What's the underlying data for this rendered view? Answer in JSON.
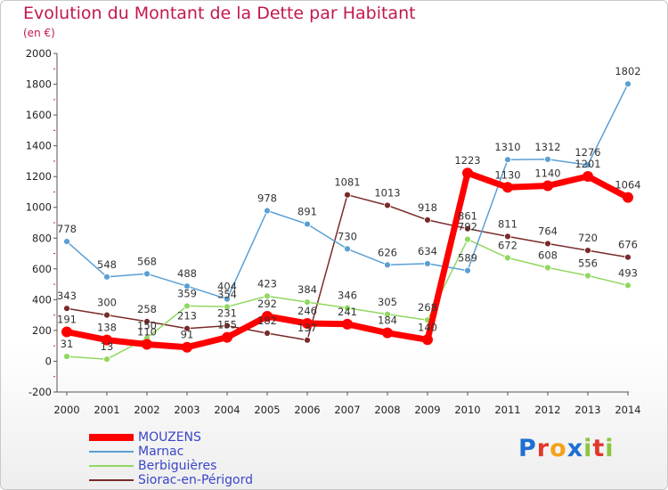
{
  "title": "Evolution du Montant de la Dette par Habitant",
  "subtitle": "(en €)",
  "logo": {
    "p1": "P",
    "p2": "r",
    "p3": "o",
    "p4": "x",
    "p5": "i",
    "p6": "t",
    "p7": "i"
  },
  "chart_data": {
    "type": "line",
    "title": "Evolution du Montant de la Dette par Habitant",
    "ylabel": "(en €)",
    "xlabel": "",
    "ylim": [
      -200,
      2000
    ],
    "yticks": [
      -200,
      0,
      200,
      400,
      600,
      800,
      1000,
      1200,
      1400,
      1600,
      1800,
      2000
    ],
    "x": [
      "2000",
      "2001",
      "2002",
      "2003",
      "2004",
      "2005",
      "2006",
      "2007",
      "2008",
      "2009",
      "2010",
      "2011",
      "2012",
      "2013",
      "2014"
    ],
    "grid": false,
    "legend_position": "bottom-left",
    "series": [
      {
        "name": "MOUZENS",
        "color": "#ff0000",
        "values": [
          191,
          138,
          110,
          91,
          155,
          292,
          246,
          241,
          184,
          140,
          1223,
          1130,
          1140,
          1201,
          1064
        ]
      },
      {
        "name": "Marnac",
        "color": "#5a9fd4",
        "values": [
          778,
          548,
          568,
          488,
          404,
          978,
          891,
          730,
          626,
          634,
          589,
          1310,
          1312,
          1276,
          1802
        ]
      },
      {
        "name": "Berbiguières",
        "color": "#90d860",
        "values": [
          31,
          13,
          150,
          359,
          354,
          423,
          384,
          346,
          305,
          268,
          792,
          672,
          608,
          556,
          493
        ]
      },
      {
        "name": "Siorac-en-Périgord",
        "color": "#7a2a2a",
        "values": [
          343,
          300,
          258,
          213,
          231,
          182,
          137,
          1081,
          1013,
          918,
          861,
          811,
          764,
          720,
          676
        ]
      }
    ]
  }
}
